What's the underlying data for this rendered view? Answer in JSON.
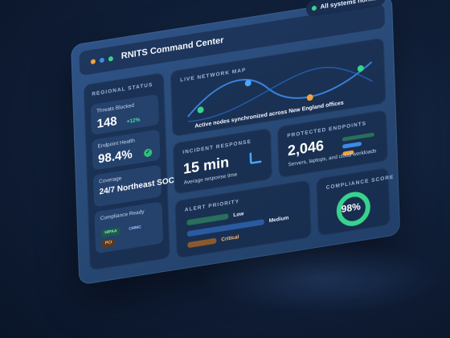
{
  "app": {
    "title": "RNITS Command Center",
    "status": "All systems normal"
  },
  "colors": {
    "accent_green": "#37d38d",
    "accent_blue": "#3f8ae8",
    "accent_orange": "#f0a23a"
  },
  "regional": {
    "title": "REGIONAL STATUS",
    "threats": {
      "label": "Threats Blocked",
      "value": "148",
      "delta": "+12%"
    },
    "endpoint_health": {
      "label": "Endpoint Health",
      "value": "98.4%"
    },
    "coverage": {
      "label": "Coverage",
      "value": "24/7 Northeast SOC"
    },
    "compliance_ready": {
      "label": "Compliance Ready",
      "tags": [
        "HIPAA",
        "CMMC",
        "PCI"
      ]
    }
  },
  "map": {
    "title": "LIVE NETWORK MAP",
    "caption": "Active nodes synchronized across New England offices"
  },
  "incident": {
    "title": "INCIDENT RESPONSE",
    "value": "15 min",
    "sub": "Average response time"
  },
  "endpoints": {
    "title": "PROTECTED ENDPOINTS",
    "value": "2,046",
    "sub": "Servers, laptops, and cloud workloads"
  },
  "alert_priority": {
    "title": "ALERT PRIORITY",
    "levels": [
      "Low",
      "Medium",
      "Critical"
    ]
  },
  "compliance": {
    "title": "COMPLIANCE SCORE",
    "value": "98%",
    "score_fraction": 0.98
  }
}
